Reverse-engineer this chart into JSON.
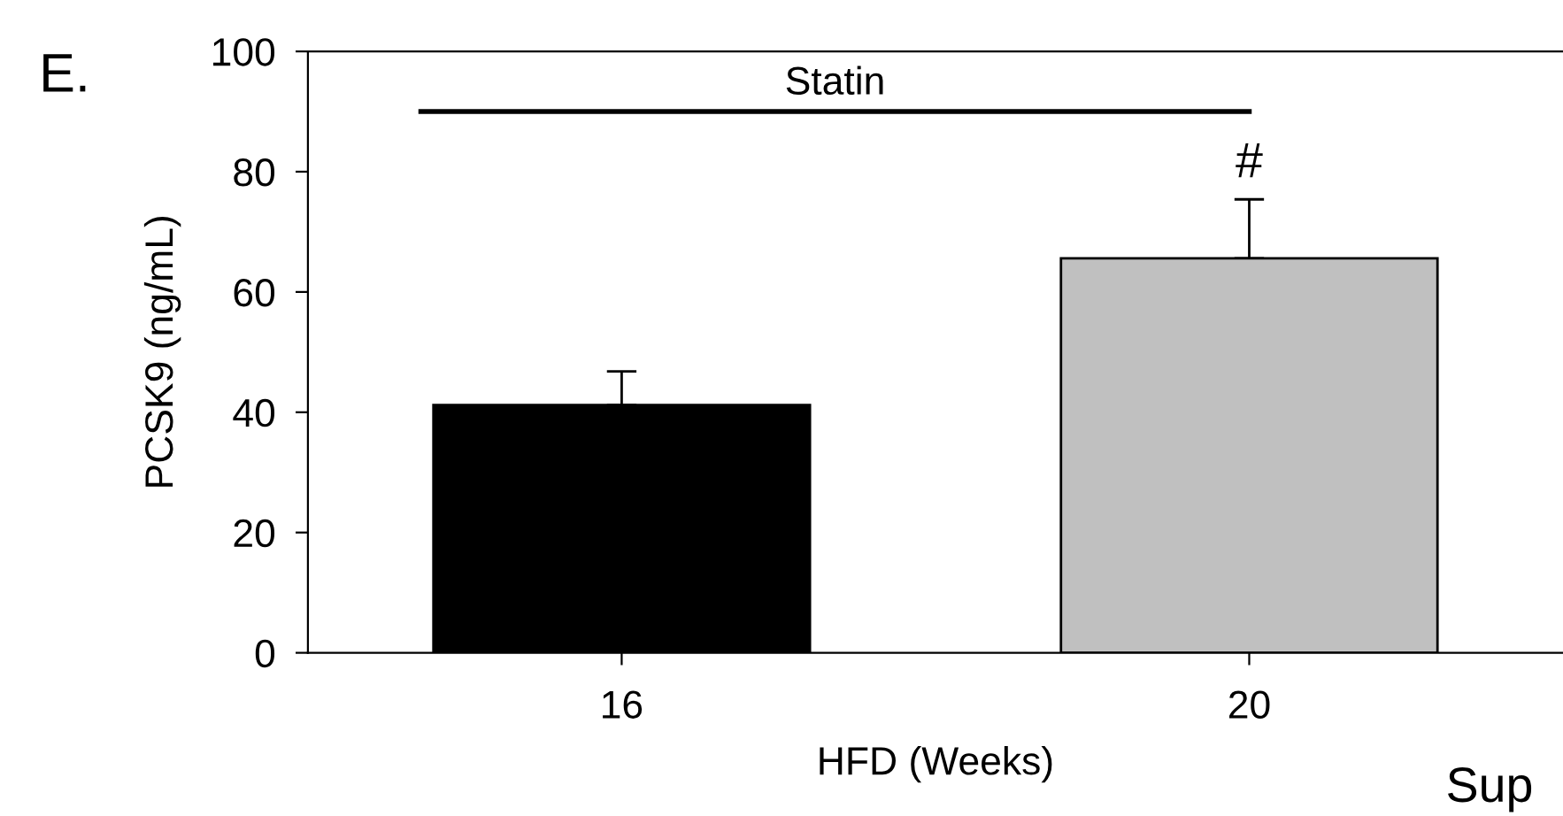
{
  "chart_data": {
    "type": "bar",
    "categories": [
      "16",
      "20"
    ],
    "values": [
      41.2,
      65.6
    ],
    "colors": [
      "#000000",
      "#c0c0c0"
    ],
    "errors": [
      [
        41.2,
        46.8
      ],
      [
        65.6,
        75.4
      ]
    ],
    "xlabel": "HFD (Weeks)",
    "ylabel": "PCSK9 (ng/mL)",
    "ylim": [
      0,
      100
    ],
    "yticks": [
      0,
      20,
      40,
      60,
      80,
      100
    ],
    "annotations": [
      "E.",
      "Statin",
      "#",
      "Sup"
    ],
    "grid": false,
    "legend": false
  }
}
